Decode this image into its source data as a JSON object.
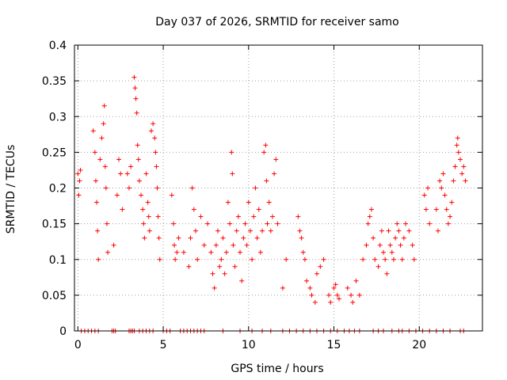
{
  "chart_data": {
    "type": "scatter",
    "title": "Day 037 of 2026, SRMTID for receiver samo",
    "xlabel": "GPS time / hours",
    "ylabel": "SRMTID / TECUs",
    "xlim": [
      -0.2,
      23.7
    ],
    "ylim": [
      0,
      0.4
    ],
    "grid": true,
    "marker": "+",
    "color": "#ff0000",
    "x_ticks": [
      {
        "value": 0,
        "label": "0"
      },
      {
        "value": 5,
        "label": "5"
      },
      {
        "value": 10,
        "label": "10"
      },
      {
        "value": 15,
        "label": "15"
      },
      {
        "value": 20,
        "label": "20"
      }
    ],
    "y_ticks": [
      {
        "value": 0,
        "label": "0"
      },
      {
        "value": 0.05,
        "label": "0.05"
      },
      {
        "value": 0.1,
        "label": "0.1"
      },
      {
        "value": 0.15,
        "label": "0.15"
      },
      {
        "value": 0.2,
        "label": "0.2"
      },
      {
        "value": 0.25,
        "label": "0.25"
      },
      {
        "value": 0.3,
        "label": "0.3"
      },
      {
        "value": 0.35,
        "label": "0.35"
      },
      {
        "value": 0.4,
        "label": "0.4"
      }
    ],
    "series": [
      {
        "name": "SRMTID",
        "points": [
          [
            0.0,
            0.22
          ],
          [
            0.05,
            0.19
          ],
          [
            0.1,
            0.21
          ],
          [
            0.15,
            0.225
          ],
          [
            0.9,
            0.28
          ],
          [
            1.0,
            0.25
          ],
          [
            1.05,
            0.21
          ],
          [
            1.1,
            0.18
          ],
          [
            1.15,
            0.14
          ],
          [
            1.2,
            0.1
          ],
          [
            1.3,
            0.24
          ],
          [
            1.4,
            0.27
          ],
          [
            1.5,
            0.29
          ],
          [
            1.55,
            0.315
          ],
          [
            1.6,
            0.23
          ],
          [
            1.65,
            0.2
          ],
          [
            1.7,
            0.15
          ],
          [
            1.75,
            0.11
          ],
          [
            2.1,
            0.12
          ],
          [
            2.3,
            0.19
          ],
          [
            2.4,
            0.24
          ],
          [
            2.5,
            0.22
          ],
          [
            2.6,
            0.17
          ],
          [
            2.9,
            0.22
          ],
          [
            3.0,
            0.2
          ],
          [
            3.1,
            0.23
          ],
          [
            3.3,
            0.355
          ],
          [
            3.35,
            0.34
          ],
          [
            3.4,
            0.325
          ],
          [
            3.45,
            0.305
          ],
          [
            3.5,
            0.26
          ],
          [
            3.55,
            0.24
          ],
          [
            3.6,
            0.21
          ],
          [
            3.7,
            0.19
          ],
          [
            3.8,
            0.17
          ],
          [
            3.85,
            0.15
          ],
          [
            3.9,
            0.13
          ],
          [
            4.0,
            0.22
          ],
          [
            4.1,
            0.18
          ],
          [
            4.15,
            0.16
          ],
          [
            4.2,
            0.14
          ],
          [
            4.3,
            0.28
          ],
          [
            4.4,
            0.29
          ],
          [
            4.5,
            0.27
          ],
          [
            4.55,
            0.25
          ],
          [
            4.6,
            0.23
          ],
          [
            4.65,
            0.2
          ],
          [
            4.7,
            0.16
          ],
          [
            4.75,
            0.13
          ],
          [
            4.8,
            0.1
          ],
          [
            5.5,
            0.19
          ],
          [
            5.6,
            0.15
          ],
          [
            5.65,
            0.12
          ],
          [
            5.7,
            0.1
          ],
          [
            5.8,
            0.11
          ],
          [
            5.9,
            0.13
          ],
          [
            6.2,
            0.11
          ],
          [
            6.5,
            0.09
          ],
          [
            6.6,
            0.13
          ],
          [
            6.7,
            0.2
          ],
          [
            6.8,
            0.17
          ],
          [
            6.9,
            0.14
          ],
          [
            7.0,
            0.1
          ],
          [
            7.2,
            0.16
          ],
          [
            7.4,
            0.12
          ],
          [
            7.6,
            0.15
          ],
          [
            7.8,
            0.11
          ],
          [
            7.9,
            0.08
          ],
          [
            8.0,
            0.06
          ],
          [
            8.1,
            0.12
          ],
          [
            8.2,
            0.14
          ],
          [
            8.3,
            0.09
          ],
          [
            8.4,
            0.1
          ],
          [
            8.5,
            0.13
          ],
          [
            8.6,
            0.08
          ],
          [
            8.7,
            0.11
          ],
          [
            8.8,
            0.18
          ],
          [
            8.9,
            0.15
          ],
          [
            9.0,
            0.25
          ],
          [
            9.05,
            0.22
          ],
          [
            9.1,
            0.12
          ],
          [
            9.2,
            0.09
          ],
          [
            9.3,
            0.14
          ],
          [
            9.4,
            0.16
          ],
          [
            9.5,
            0.11
          ],
          [
            9.6,
            0.07
          ],
          [
            9.7,
            0.13
          ],
          [
            9.8,
            0.15
          ],
          [
            9.9,
            0.12
          ],
          [
            10.0,
            0.18
          ],
          [
            10.1,
            0.14
          ],
          [
            10.2,
            0.1
          ],
          [
            10.3,
            0.16
          ],
          [
            10.4,
            0.2
          ],
          [
            10.5,
            0.13
          ],
          [
            10.6,
            0.17
          ],
          [
            10.7,
            0.11
          ],
          [
            10.8,
            0.14
          ],
          [
            10.9,
            0.25
          ],
          [
            11.0,
            0.26
          ],
          [
            11.05,
            0.21
          ],
          [
            11.1,
            0.15
          ],
          [
            11.2,
            0.18
          ],
          [
            11.3,
            0.14
          ],
          [
            11.4,
            0.16
          ],
          [
            11.5,
            0.22
          ],
          [
            11.6,
            0.24
          ],
          [
            11.7,
            0.15
          ],
          [
            12.0,
            0.06
          ],
          [
            12.2,
            0.1
          ],
          [
            12.9,
            0.16
          ],
          [
            13.0,
            0.14
          ],
          [
            13.1,
            0.13
          ],
          [
            13.2,
            0.11
          ],
          [
            13.3,
            0.1
          ],
          [
            13.4,
            0.07
          ],
          [
            13.6,
            0.06
          ],
          [
            13.7,
            0.05
          ],
          [
            13.9,
            0.04
          ],
          [
            14.0,
            0.08
          ],
          [
            14.2,
            0.09
          ],
          [
            14.4,
            0.1
          ],
          [
            14.7,
            0.05
          ],
          [
            14.8,
            0.04
          ],
          [
            15.0,
            0.06
          ],
          [
            15.1,
            0.065
          ],
          [
            15.2,
            0.05
          ],
          [
            15.3,
            0.045
          ],
          [
            15.8,
            0.06
          ],
          [
            16.0,
            0.05
          ],
          [
            16.1,
            0.04
          ],
          [
            16.3,
            0.07
          ],
          [
            16.5,
            0.05
          ],
          [
            16.7,
            0.1
          ],
          [
            16.9,
            0.12
          ],
          [
            17.0,
            0.15
          ],
          [
            17.1,
            0.16
          ],
          [
            17.2,
            0.17
          ],
          [
            17.3,
            0.13
          ],
          [
            17.4,
            0.1
          ],
          [
            17.6,
            0.09
          ],
          [
            17.7,
            0.12
          ],
          [
            17.8,
            0.14
          ],
          [
            17.9,
            0.11
          ],
          [
            18.0,
            0.1
          ],
          [
            18.1,
            0.08
          ],
          [
            18.2,
            0.14
          ],
          [
            18.3,
            0.12
          ],
          [
            18.4,
            0.11
          ],
          [
            18.5,
            0.1
          ],
          [
            18.6,
            0.13
          ],
          [
            18.7,
            0.15
          ],
          [
            18.8,
            0.14
          ],
          [
            18.9,
            0.12
          ],
          [
            19.0,
            0.1
          ],
          [
            19.1,
            0.13
          ],
          [
            19.2,
            0.15
          ],
          [
            19.4,
            0.14
          ],
          [
            19.6,
            0.12
          ],
          [
            19.7,
            0.1
          ],
          [
            20.3,
            0.19
          ],
          [
            20.4,
            0.17
          ],
          [
            20.5,
            0.2
          ],
          [
            20.6,
            0.15
          ],
          [
            21.0,
            0.17
          ],
          [
            21.1,
            0.14
          ],
          [
            21.2,
            0.21
          ],
          [
            21.3,
            0.2
          ],
          [
            21.4,
            0.22
          ],
          [
            21.5,
            0.19
          ],
          [
            21.6,
            0.17
          ],
          [
            21.7,
            0.15
          ],
          [
            21.8,
            0.16
          ],
          [
            21.9,
            0.18
          ],
          [
            22.0,
            0.21
          ],
          [
            22.1,
            0.23
          ],
          [
            22.2,
            0.26
          ],
          [
            22.25,
            0.27
          ],
          [
            22.3,
            0.25
          ],
          [
            22.4,
            0.24
          ],
          [
            22.5,
            0.22
          ],
          [
            22.6,
            0.23
          ],
          [
            22.7,
            0.21
          ]
        ],
        "zero_x": [
          0.2,
          0.4,
          0.6,
          0.8,
          1.0,
          1.2,
          2.0,
          2.1,
          2.2,
          3.0,
          3.1,
          3.2,
          3.3,
          3.6,
          3.8,
          4.0,
          4.2,
          4.4,
          5.0,
          5.2,
          5.4,
          6.0,
          6.2,
          6.4,
          6.6,
          6.8,
          7.0,
          7.2,
          7.4,
          8.5,
          9.5,
          10.2,
          10.8,
          11.3,
          12.0,
          12.4,
          12.8,
          13.2,
          13.6,
          14.0,
          14.4,
          14.8,
          15.2,
          15.6,
          15.9,
          16.2,
          16.5,
          17.3,
          17.6,
          17.9,
          18.4,
          18.8,
          19.0,
          19.4,
          19.8,
          20.2,
          20.6,
          21.0,
          21.4,
          21.8,
          22.4,
          22.6
        ]
      }
    ]
  }
}
